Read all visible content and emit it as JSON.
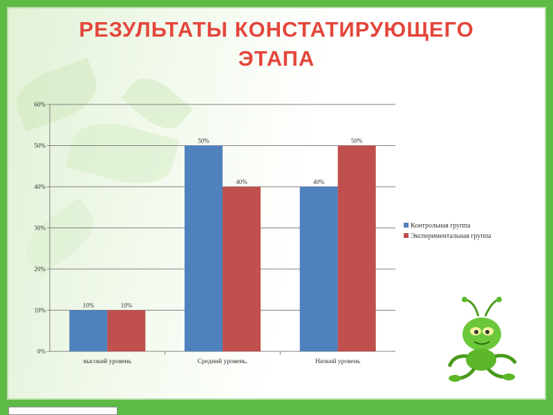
{
  "slide": {
    "title_line1": "РЕЗУЛЬТАТЫ КОНСТАТИРУЮЩЕГО",
    "title_line2": "ЭТАПА",
    "title_color": "#e4463c",
    "frame_color": "#5dbb45"
  },
  "chart_data": {
    "type": "bar",
    "categories": [
      "высокий уровень",
      "Средний уровень.",
      "Низкий уровень"
    ],
    "series": [
      {
        "name": "Контрольная группа",
        "values": [
          10,
          50,
          40
        ],
        "color": "#4f81bd"
      },
      {
        "name": "Экспериментальная группа",
        "values": [
          10,
          40,
          50
        ],
        "color": "#c0504d"
      }
    ],
    "data_labels": [
      [
        "10%",
        "50%",
        "40%"
      ],
      [
        "10%",
        "40%",
        "50%"
      ]
    ],
    "yticks": [
      "0%",
      "10%",
      "20%",
      "30%",
      "40%",
      "50%",
      "60%"
    ],
    "ylim": [
      0,
      60
    ],
    "grid": true,
    "legend_position": "right"
  },
  "mascot": {
    "icon": "green-bug-mascot-icon"
  }
}
